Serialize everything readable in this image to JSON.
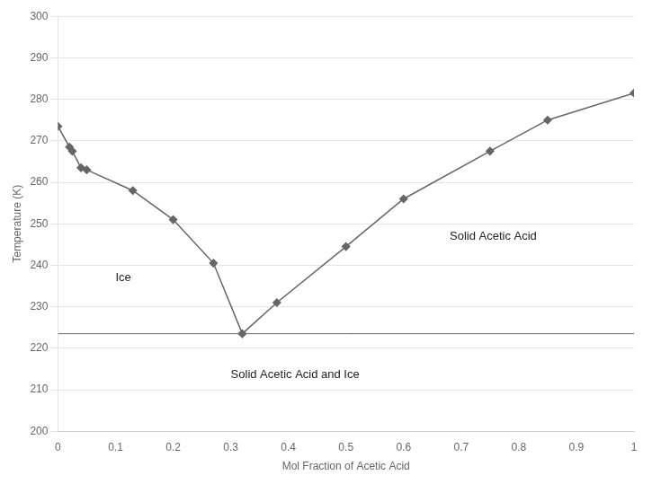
{
  "chart_data": {
    "type": "line",
    "xlabel": "Mol Fraction of Acetic Acid",
    "ylabel": "Temperature (K)",
    "x": [
      0.0,
      0.02,
      0.025,
      0.04,
      0.05,
      0.13,
      0.2,
      0.27,
      0.32,
      0.38,
      0.5,
      0.6,
      0.75,
      0.85,
      1.0
    ],
    "values": [
      273.5,
      268.5,
      267.5,
      263.5,
      263.0,
      258.0,
      251.0,
      240.5,
      223.5,
      231.0,
      244.5,
      256.0,
      267.5,
      275.0,
      281.5
    ],
    "color": "#666666",
    "marker": "diamond",
    "hline": 223.5,
    "xlim": [
      0,
      1
    ],
    "ylim": [
      200,
      300
    ],
    "xticks": [
      0,
      0.1,
      0.2,
      0.3,
      0.4,
      0.5,
      0.6,
      0.7,
      0.8,
      0.9,
      1
    ],
    "yticks": [
      200,
      210,
      220,
      230,
      240,
      250,
      260,
      270,
      280,
      290,
      300
    ],
    "grid": "y",
    "annotations": [
      {
        "text": "Ice",
        "x": 0.1,
        "y": 237.0
      },
      {
        "text": "Solid Acetic Acid",
        "x": 0.68,
        "y": 247.0
      },
      {
        "text": "Solid Acetic Acid and Ice",
        "x": 0.3,
        "y": 213.5
      }
    ]
  }
}
